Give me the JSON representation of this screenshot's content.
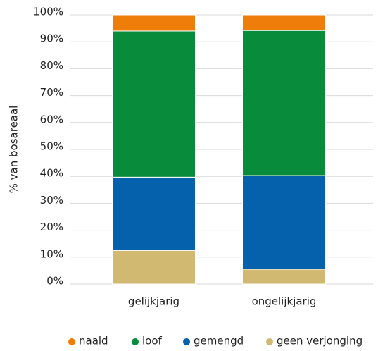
{
  "chart_data": {
    "type": "stacked-bar",
    "y_label": "% van bosareaal",
    "categories": [
      "gelijkjarig",
      "ongelijkjarig"
    ],
    "series": [
      {
        "name": "naald",
        "color": "#ee7d0a",
        "values": [
          6.0,
          5.8
        ]
      },
      {
        "name": "loof",
        "color": "#088c3c",
        "values": [
          54.3,
          53.9
        ]
      },
      {
        "name": "gemengd",
        "color": "#0561ab",
        "values": [
          27.2,
          34.8
        ]
      },
      {
        "name": "geen verjonging",
        "color": "#d2b971",
        "values": [
          12.5,
          5.5
        ]
      }
    ],
    "ylim": [
      0,
      100
    ],
    "yticks": [
      {
        "value": 0,
        "label": "0%"
      },
      {
        "value": 10,
        "label": "10%"
      },
      {
        "value": 20,
        "label": "20%"
      },
      {
        "value": 30,
        "label": "30%"
      },
      {
        "value": 40,
        "label": "40%"
      },
      {
        "value": 50,
        "label": "50%"
      },
      {
        "value": 60,
        "label": "60%"
      },
      {
        "value": 70,
        "label": "70%"
      },
      {
        "value": 80,
        "label": "80%"
      },
      {
        "value": 90,
        "label": "90%"
      },
      {
        "value": 100,
        "label": "100%"
      }
    ],
    "grid": true,
    "legend": "bottom"
  }
}
